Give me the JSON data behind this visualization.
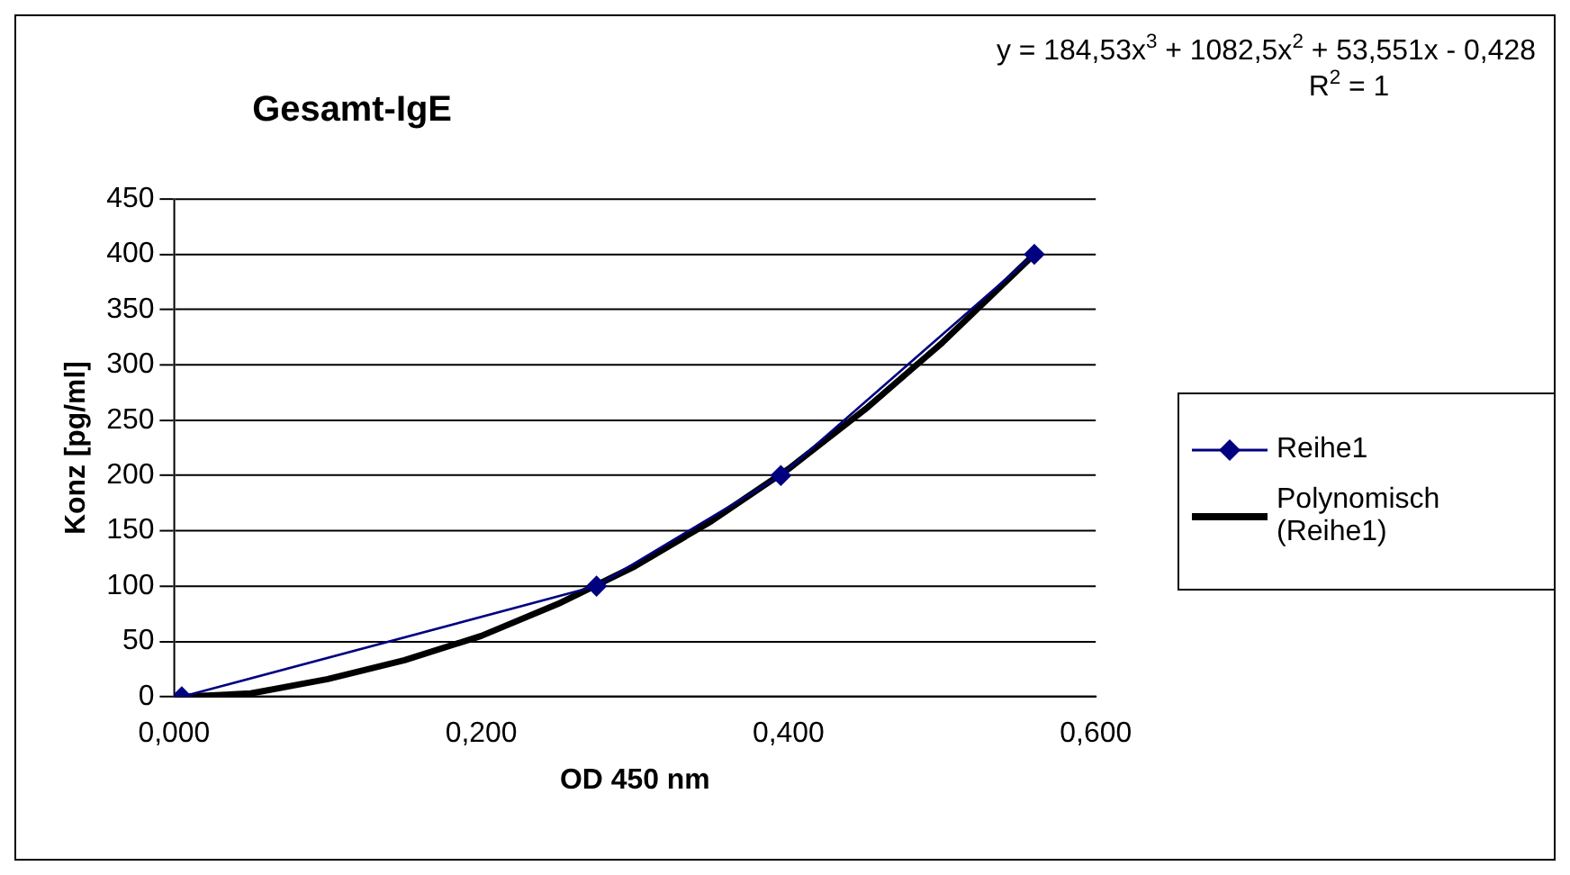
{
  "chart_data": {
    "type": "scatter",
    "title": "Gesamt-IgE",
    "xlabel": "OD 450 nm",
    "ylabel": "Konz [pg/ml]",
    "annotations": [
      "y = 184,53x$^{3}$ + 1082,5x$^{2}$ + 53,551x - 0,428",
      "R$^{2}$ = 1"
    ],
    "series": [
      {
        "name": "Reihe1",
        "type": "line",
        "color": "#000080",
        "marker": "diamond",
        "x": [
          0.005,
          0.275,
          0.395,
          0.56
        ],
        "values": [
          0,
          100,
          200,
          400
        ]
      },
      {
        "name": "Polynomisch (Reihe1)",
        "type": "line",
        "color": "#000000",
        "marker": "none",
        "x": [
          0.005,
          0.05,
          0.1,
          0.15,
          0.2,
          0.25,
          0.3,
          0.35,
          0.4,
          0.45,
          0.5,
          0.56
        ],
        "values": [
          0,
          3,
          16,
          33,
          55,
          84,
          118,
          159,
          206,
          260,
          320,
          400
        ]
      }
    ],
    "xlim": [
      0,
      0.6
    ],
    "xticks": [
      {
        "value": 0,
        "label": "0,000"
      },
      {
        "value": 0.2,
        "label": "0,200"
      },
      {
        "value": 0.4,
        "label": "0,400"
      },
      {
        "value": 0.6,
        "label": "0,600"
      }
    ],
    "ylim": [
      0,
      450
    ],
    "yticks": [
      0,
      50,
      100,
      150,
      200,
      250,
      300,
      350,
      400,
      450
    ],
    "grid": "y",
    "legend": "right"
  }
}
